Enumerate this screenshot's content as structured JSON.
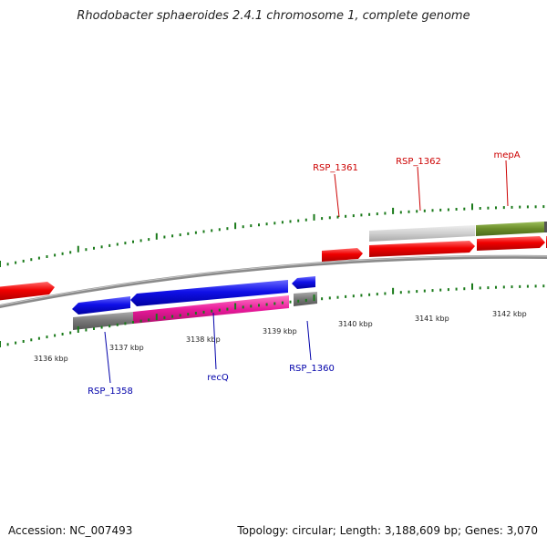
{
  "title": "Rhodobacter sphaeroides 2.4.1 chromosome 1, complete genome",
  "footer": {
    "accession": "Accession: NC_007493",
    "stats": "Topology: circular; Length: 3,188,609 bp; Genes: 3,070"
  },
  "ticks": [
    "3136 kbp",
    "3137 kbp",
    "3138 kbp",
    "3139 kbp",
    "3140 kbp",
    "3141 kbp",
    "3142 kbp"
  ],
  "genes": {
    "rsp1358": "RSP_1358",
    "recq": "recQ",
    "rsp1360": "RSP_1360",
    "rsp1361": "RSP_1361",
    "rsp1362": "RSP_1362",
    "mepa": "mepA"
  },
  "colors": {
    "forward_cds": "#e8000b",
    "reverse_cds": "#0a00e0",
    "pink_gene": "#e01a8a",
    "green_gene": "#6a8c2a",
    "gray_gene": "#777777",
    "light_gray_gene": "#cfcfcf",
    "tick_green": "#1a7a1a",
    "label_forward": "#cc0000",
    "label_reverse": "#0000aa"
  }
}
